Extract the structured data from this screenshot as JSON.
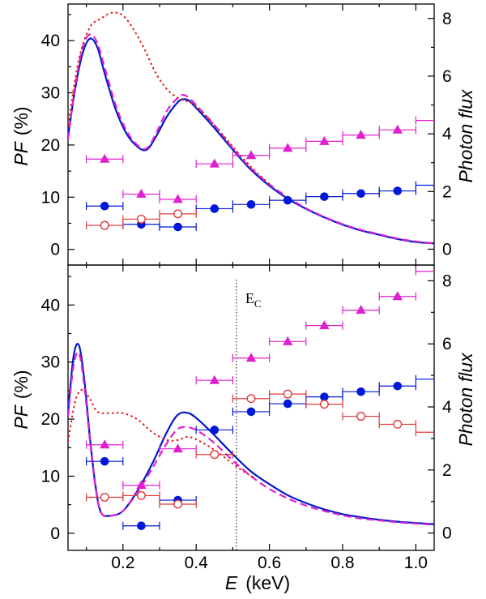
{
  "chart_data": {
    "type": "line",
    "xlabel_var": "E",
    "xlabel_unit": "(keV)",
    "x_ticks": [
      "0.2",
      "0.4",
      "0.6",
      "0.8",
      "1.0"
    ],
    "x_tick_values": [
      0.2,
      0.4,
      0.6,
      0.8,
      1.0
    ],
    "xlim": [
      0.05,
      1.05
    ],
    "left_label_var": "PF",
    "left_label_unit": "(%)",
    "right_label": "Photon flux",
    "colors": {
      "solid": "#0018c8",
      "dashed": "#e020d0",
      "dotted": "#e81818",
      "blue": "#0018d8",
      "magenta": "#e020d0",
      "red": "#e03838"
    },
    "panels": [
      {
        "name": "top",
        "ylim": [
          -3,
          47
        ],
        "y_ticks": [
          "0",
          "10",
          "20",
          "30",
          "40"
        ],
        "y_tick_values": [
          0,
          10,
          20,
          30,
          40
        ],
        "y2lim": [
          -0.55,
          8.5
        ],
        "y2_ticks": [
          "0",
          "2",
          "4",
          "6",
          "8"
        ],
        "y2_tick_values": [
          0,
          2,
          4,
          6,
          8
        ],
        "series": [
          {
            "name": "Photon flux (solid)",
            "style": "solid",
            "axis": "right",
            "x": [
              0.05,
              0.07,
              0.09,
              0.11,
              0.13,
              0.15,
              0.18,
              0.21,
              0.24,
              0.265,
              0.29,
              0.32,
              0.35,
              0.365,
              0.38,
              0.4,
              0.45,
              0.5,
              0.55,
              0.6,
              0.65,
              0.7,
              0.75,
              0.8,
              0.85,
              0.9,
              0.95,
              1.0,
              1.05
            ],
            "values": [
              3.9,
              5.6,
              6.8,
              7.3,
              7.0,
              6.1,
              4.85,
              4.0,
              3.55,
              3.45,
              3.9,
              4.6,
              5.1,
              5.2,
              5.15,
              4.9,
              4.2,
              3.45,
              2.75,
              2.2,
              1.75,
              1.4,
              1.1,
              0.85,
              0.65,
              0.5,
              0.35,
              0.25,
              0.2
            ]
          },
          {
            "name": "Photon flux (dashed)",
            "style": "dashed",
            "axis": "right",
            "x": [
              0.05,
              0.07,
              0.09,
              0.11,
              0.13,
              0.15,
              0.18,
              0.21,
              0.24,
              0.265,
              0.29,
              0.32,
              0.35,
              0.365,
              0.38,
              0.4,
              0.45,
              0.5,
              0.55,
              0.6,
              0.65,
              0.7,
              0.75,
              0.8,
              0.85,
              0.9,
              0.95,
              1.0,
              1.05
            ],
            "values": [
              3.8,
              5.7,
              7.0,
              7.45,
              7.15,
              6.3,
              5.0,
              4.1,
              3.6,
              3.5,
              4.0,
              4.8,
              5.25,
              5.35,
              5.25,
              5.0,
              4.3,
              3.5,
              2.8,
              2.25,
              1.8,
              1.42,
              1.12,
              0.87,
              0.67,
              0.52,
              0.37,
              0.27,
              0.2
            ]
          },
          {
            "name": "Photon flux (dotted)",
            "style": "dotted",
            "axis": "right",
            "x": [
              0.05,
              0.08,
              0.11,
              0.14,
              0.17,
              0.2,
              0.23,
              0.26,
              0.29,
              0.32,
              0.35,
              0.38,
              0.4,
              0.45,
              0.5,
              0.55,
              0.6
            ],
            "values": [
              4.3,
              6.6,
              7.7,
              8.0,
              8.2,
              8.1,
              7.6,
              6.9,
              6.1,
              5.55,
              5.25,
              5.1,
              4.95,
              4.3,
              3.55,
              2.85,
              2.25
            ]
          },
          {
            "name": "PF filled circles",
            "style": "points",
            "marker": "circle-filled",
            "color": "blue",
            "axis": "left",
            "x": [
              0.15,
              0.25,
              0.35,
              0.45,
              0.55,
              0.65,
              0.75,
              0.85,
              0.95
            ],
            "values": [
              8.3,
              4.8,
              4.3,
              7.8,
              8.6,
              9.4,
              10.1,
              10.7,
              11.2
            ],
            "xerr": [
              0.05,
              0.05,
              0.05,
              0.05,
              0.05,
              0.05,
              0.05,
              0.05,
              0.05
            ]
          },
          {
            "name": "PF triangles",
            "style": "points",
            "marker": "triangle",
            "color": "magenta",
            "axis": "left",
            "x": [
              0.15,
              0.25,
              0.35,
              0.45,
              0.55,
              0.65,
              0.75,
              0.85,
              0.95,
              1.05
            ],
            "values": [
              17.3,
              10.6,
              9.6,
              16.4,
              18.0,
              19.4,
              20.7,
              21.9,
              22.9,
              24.7
            ],
            "xerr": [
              0.05,
              0.05,
              0.05,
              0.05,
              0.05,
              0.05,
              0.05,
              0.05,
              0.05,
              0.05
            ]
          },
          {
            "name": "PF open circles",
            "style": "points",
            "marker": "circle-open",
            "color": "red",
            "axis": "left",
            "x": [
              0.15,
              0.25,
              0.35
            ],
            "values": [
              4.6,
              5.8,
              6.8
            ],
            "xerr": [
              0.05,
              0.05,
              0.05
            ]
          },
          {
            "name": "PF blue (no marker)",
            "style": "points",
            "marker": "none",
            "color": "blue",
            "axis": "left",
            "x": [
              1.05
            ],
            "values": [
              12.3
            ],
            "xerr": [
              0.05
            ]
          }
        ]
      },
      {
        "name": "bottom",
        "ylim": [
          -3,
          47
        ],
        "y_ticks": [
          "0",
          "10",
          "20",
          "30",
          "40"
        ],
        "y_tick_values": [
          0,
          10,
          20,
          30,
          40
        ],
        "y2lim": [
          -0.55,
          8.5
        ],
        "y2_ticks": [
          "0",
          "2",
          "4",
          "6",
          "8"
        ],
        "y2_tick_values": [
          0,
          2,
          4,
          6,
          8
        ],
        "annotation": {
          "label": "E",
          "subscript": "C",
          "x": 0.51
        },
        "series": [
          {
            "name": "Photon flux (solid)",
            "style": "solid",
            "axis": "right",
            "x": [
              0.05,
              0.065,
              0.08,
              0.095,
              0.11,
              0.125,
              0.14,
              0.165,
              0.2,
              0.24,
              0.28,
              0.32,
              0.35,
              0.38,
              0.41,
              0.45,
              0.5,
              0.55,
              0.6,
              0.65,
              0.7,
              0.75,
              0.8,
              0.85,
              0.9,
              0.95,
              1.0,
              1.05
            ],
            "values": [
              3.8,
              5.6,
              5.95,
              4.8,
              3.0,
              1.5,
              0.65,
              0.55,
              0.7,
              1.35,
              2.2,
              3.2,
              3.75,
              3.8,
              3.55,
              3.1,
              2.5,
              1.95,
              1.55,
              1.2,
              0.95,
              0.75,
              0.6,
              0.5,
              0.42,
              0.36,
              0.32,
              0.28
            ]
          },
          {
            "name": "Photon flux (dashed)",
            "style": "dashed",
            "axis": "right",
            "x": [
              0.05,
              0.065,
              0.08,
              0.095,
              0.11,
              0.125,
              0.14,
              0.165,
              0.2,
              0.24,
              0.28,
              0.32,
              0.35,
              0.38,
              0.41,
              0.45,
              0.5,
              0.55,
              0.6,
              0.65,
              0.7,
              0.75,
              0.8,
              0.85,
              0.9,
              0.95,
              1.0,
              1.05
            ],
            "values": [
              3.7,
              5.3,
              5.7,
              4.6,
              2.9,
              1.45,
              0.65,
              0.55,
              0.7,
              1.3,
              2.05,
              2.85,
              3.3,
              3.35,
              3.2,
              2.85,
              2.3,
              1.8,
              1.4,
              1.1,
              0.87,
              0.7,
              0.56,
              0.46,
              0.4,
              0.34,
              0.3,
              0.26
            ]
          },
          {
            "name": "Photon flux (dotted)",
            "style": "dotted",
            "axis": "right",
            "x": [
              0.05,
              0.07,
              0.09,
              0.11,
              0.13,
              0.16,
              0.2,
              0.24,
              0.28,
              0.32,
              0.35,
              0.38,
              0.42,
              0.46,
              0.5,
              0.53,
              0.56
            ],
            "values": [
              2.9,
              4.2,
              4.55,
              4.25,
              3.85,
              3.8,
              3.8,
              3.6,
              3.2,
              2.95,
              2.95,
              3.05,
              2.85,
              2.55,
              2.2,
              1.95,
              1.75
            ]
          },
          {
            "name": "PF filled circles",
            "style": "points",
            "marker": "circle-filled",
            "color": "blue",
            "axis": "left",
            "x": [
              0.15,
              0.25,
              0.35,
              0.45,
              0.55,
              0.65,
              0.75,
              0.85,
              0.95
            ],
            "values": [
              12.6,
              1.3,
              5.8,
              18.1,
              21.3,
              22.7,
              23.9,
              24.8,
              25.8
            ],
            "xerr": [
              0.05,
              0.05,
              0.05,
              0.05,
              0.05,
              0.05,
              0.05,
              0.05,
              0.05
            ]
          },
          {
            "name": "PF triangles",
            "style": "points",
            "marker": "triangle",
            "color": "magenta",
            "axis": "left",
            "x": [
              0.15,
              0.25,
              0.35,
              0.45,
              0.55,
              0.65,
              0.75,
              0.85,
              0.95,
              1.05
            ],
            "values": [
              15.5,
              8.4,
              14.8,
              26.8,
              30.7,
              33.6,
              36.4,
              39.1,
              41.5,
              45.9
            ],
            "xerr": [
              0.05,
              0.05,
              0.05,
              0.05,
              0.05,
              0.05,
              0.05,
              0.05,
              0.05,
              0.05
            ]
          },
          {
            "name": "PF open circles",
            "style": "points",
            "marker": "circle-open",
            "color": "red",
            "axis": "left",
            "x": [
              0.15,
              0.25,
              0.35,
              0.45,
              0.55,
              0.65,
              0.75,
              0.85,
              0.95,
              1.05
            ],
            "values": [
              6.3,
              6.6,
              5.1,
              13.8,
              23.6,
              24.4,
              22.6,
              20.5,
              19.1,
              17.7
            ],
            "xerr": [
              0.05,
              0.05,
              0.05,
              0.05,
              0.05,
              0.05,
              0.05,
              0.05,
              0.05,
              0.05
            ]
          },
          {
            "name": "PF blue (no marker)",
            "style": "points",
            "marker": "none",
            "color": "blue",
            "axis": "left",
            "x": [
              1.05
            ],
            "values": [
              27.0
            ],
            "xerr": [
              0.05
            ]
          }
        ]
      }
    ]
  }
}
